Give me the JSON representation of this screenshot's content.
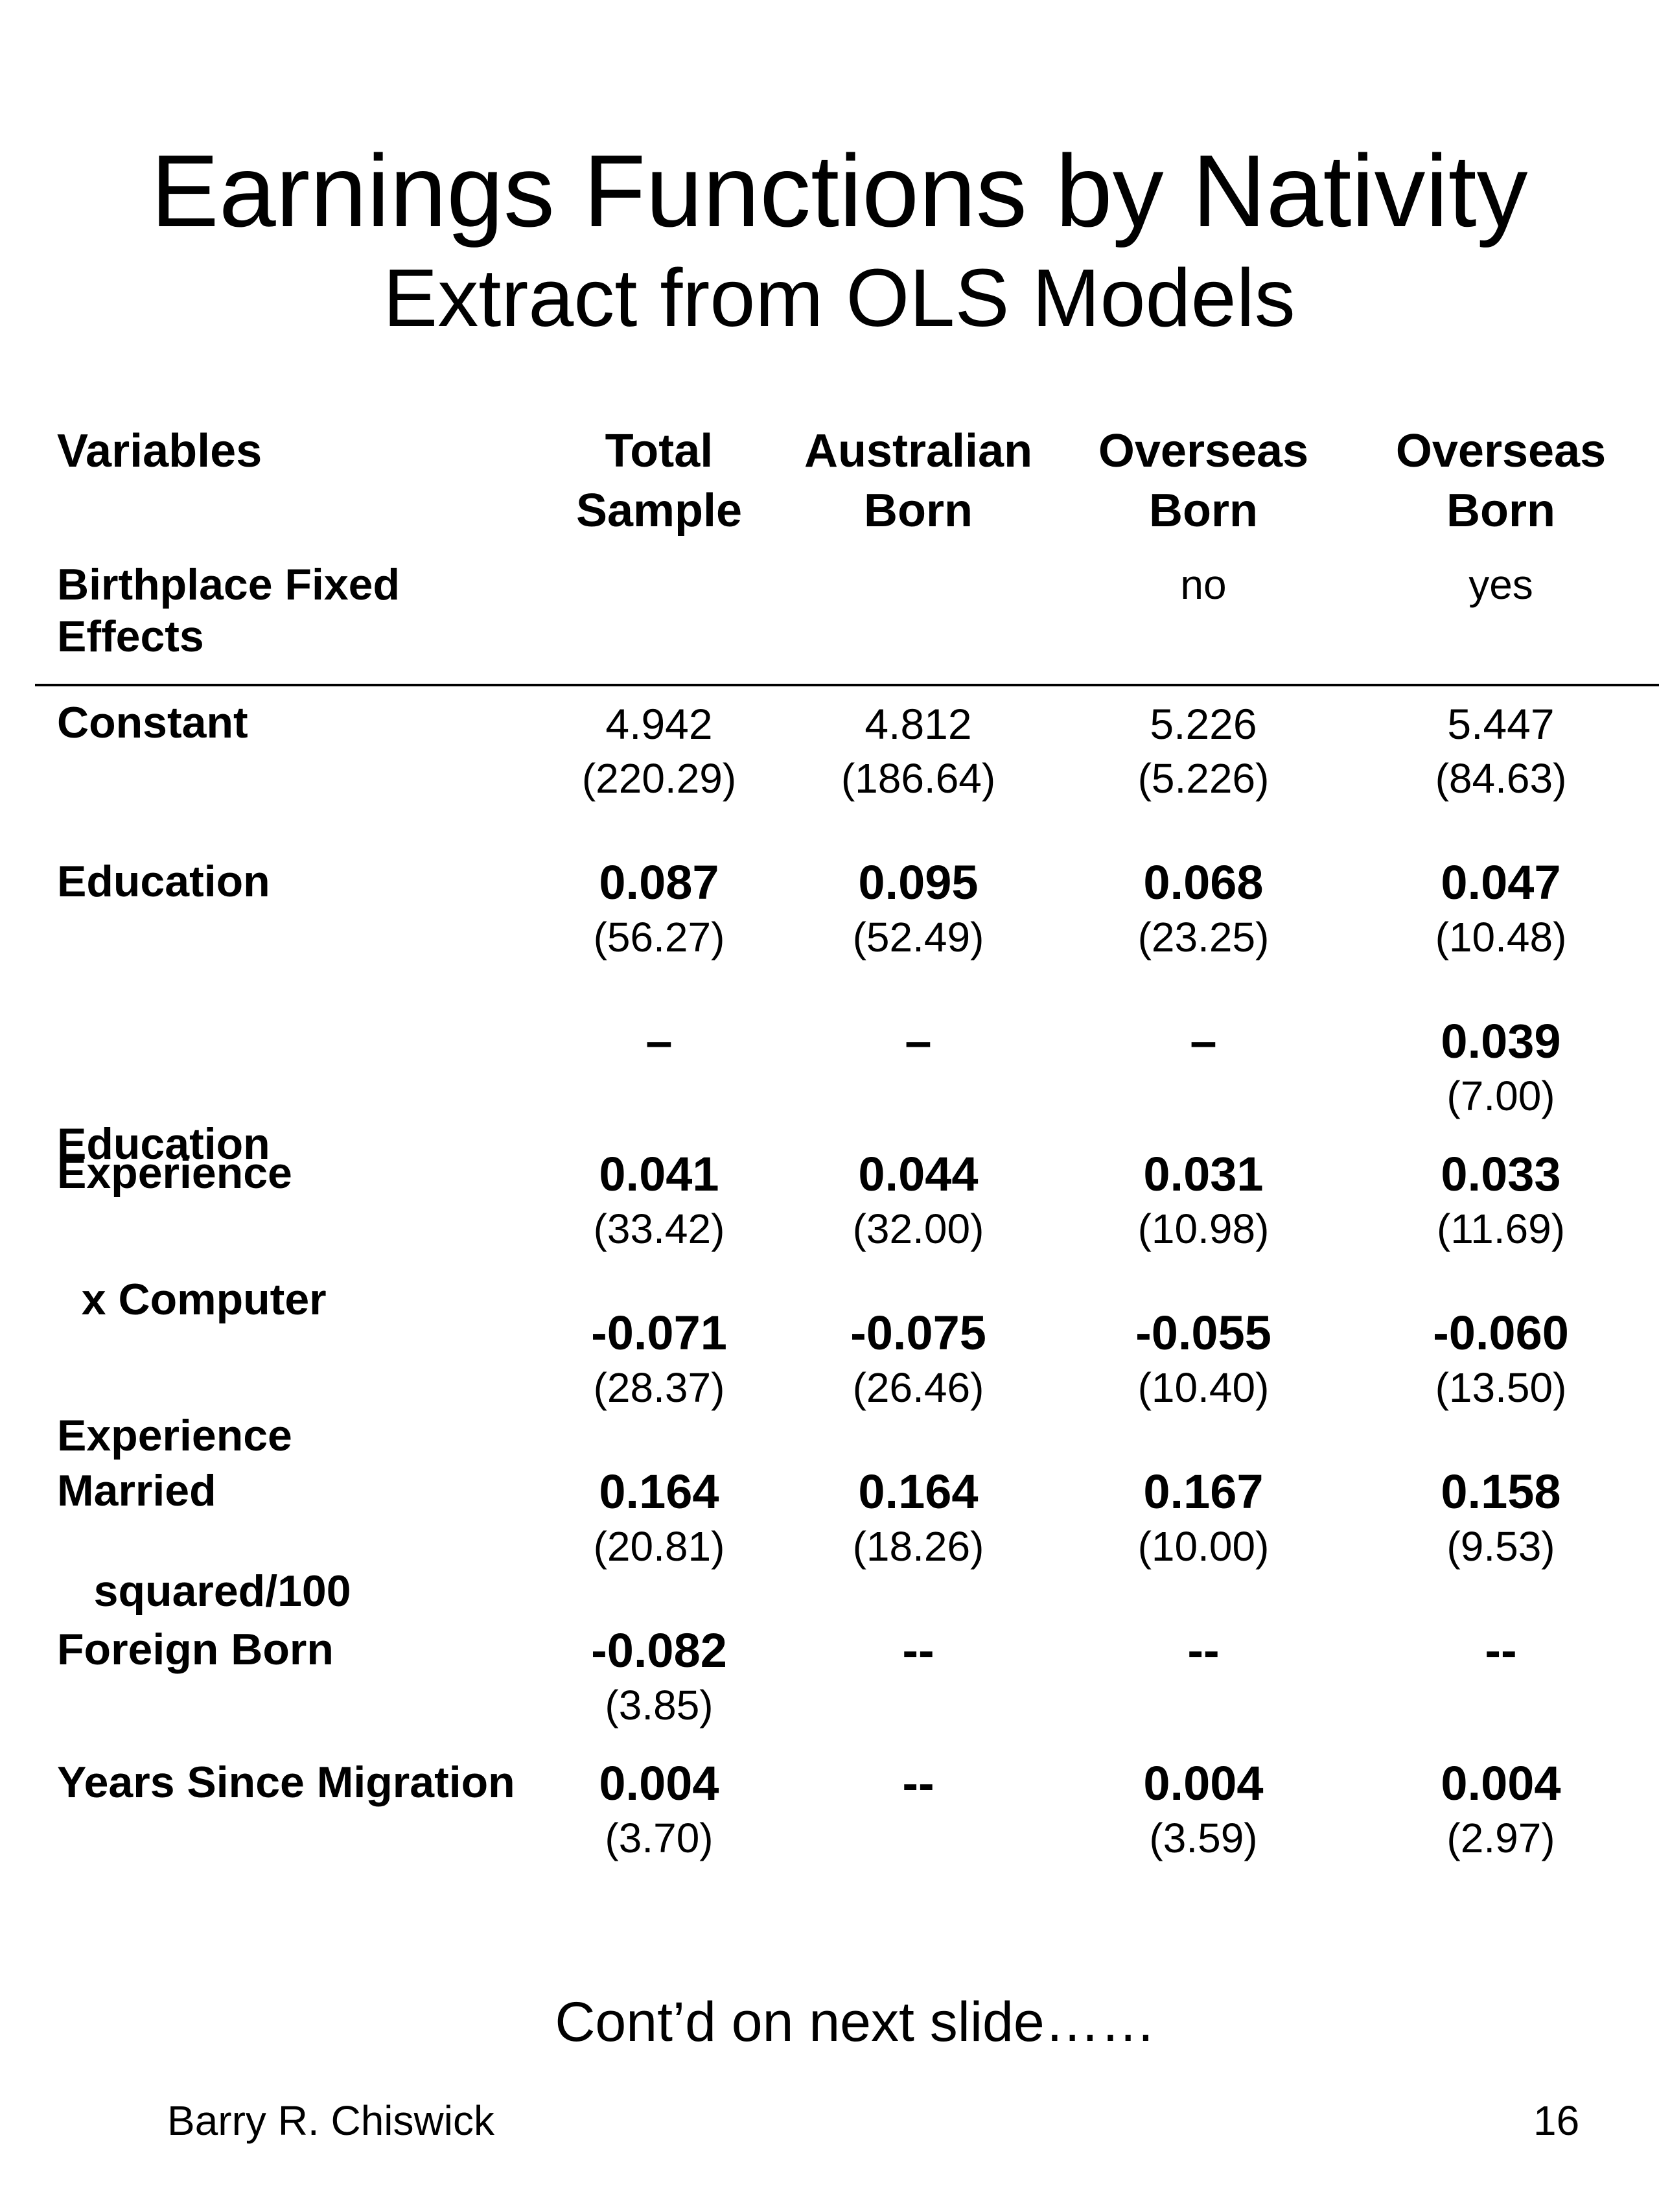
{
  "title": "Earnings Functions by Nativity",
  "subtitle": "Extract from OLS Models",
  "table": {
    "header": {
      "label": "Variables",
      "columns": [
        [
          "Total",
          "Sample"
        ],
        [
          "Australian",
          "Born"
        ],
        [
          "Overseas",
          "Born"
        ],
        [
          "Overseas",
          "Born"
        ]
      ]
    },
    "fixed_effects": {
      "label_lines": [
        "Birthplace Fixed",
        "Effects"
      ],
      "values": [
        "",
        "",
        "no",
        "yes"
      ]
    },
    "rows": [
      {
        "label_lines": [
          "Constant"
        ],
        "cells": [
          {
            "coef": "4.942",
            "se": "(220.29)"
          },
          {
            "coef": "4.812",
            "se": "(186.64)"
          },
          {
            "coef": "5.226",
            "se": "(5.226)"
          },
          {
            "coef": "5.447",
            "se": "(84.63)"
          }
        ]
      },
      {
        "label_lines": [
          "Education"
        ],
        "cells": [
          {
            "coef": "0.087",
            "se": "(56.27)"
          },
          {
            "coef": "0.095",
            "se": "(52.49)"
          },
          {
            "coef": "0.068",
            "se": "(23.25)"
          },
          {
            "coef": "0.047",
            "se": "(10.48)"
          }
        ]
      },
      {
        "label_lines": [
          "Education",
          "  x Computer"
        ],
        "cells": [
          {
            "coef": "–",
            "se": ""
          },
          {
            "coef": "–",
            "se": ""
          },
          {
            "coef": "–",
            "se": ""
          },
          {
            "coef": "0.039",
            "se": "(7.00)"
          }
        ]
      },
      {
        "label_lines": [
          "Experience"
        ],
        "cells": [
          {
            "coef": "0.041",
            "se": "(33.42)"
          },
          {
            "coef": "0.044",
            "se": "(32.00)"
          },
          {
            "coef": "0.031",
            "se": "(10.98)"
          },
          {
            "coef": "0.033",
            "se": "(11.69)"
          }
        ]
      },
      {
        "label_lines": [
          "Experience",
          "   squared/100"
        ],
        "cells": [
          {
            "coef": "-0.071",
            "se": "(28.37)"
          },
          {
            "coef": "-0.075",
            "se": "(26.46)"
          },
          {
            "coef": "-0.055",
            "se": "(10.40)"
          },
          {
            "coef": "-0.060",
            "se": "(13.50)"
          }
        ]
      },
      {
        "label_lines": [
          "Married"
        ],
        "cells": [
          {
            "coef": "0.164",
            "se": "(20.81)"
          },
          {
            "coef": "0.164",
            "se": "(18.26)"
          },
          {
            "coef": "0.167",
            "se": "(10.00)"
          },
          {
            "coef": "0.158",
            "se": "(9.53)"
          }
        ]
      },
      {
        "label_lines": [
          "Foreign Born"
        ],
        "cells": [
          {
            "coef": "-0.082",
            "se": "(3.85)"
          },
          {
            "coef": "--",
            "se": ""
          },
          {
            "coef": "--",
            "se": ""
          },
          {
            "coef": "--",
            "se": ""
          }
        ]
      },
      {
        "label_lines": [
          "Years Since Migration"
        ],
        "cells": [
          {
            "coef": "0.004",
            "se": "(3.70)"
          },
          {
            "coef": "--",
            "se": ""
          },
          {
            "coef": "0.004",
            "se": "(3.59)"
          },
          {
            "coef": "0.004",
            "se": "(2.97)"
          }
        ]
      }
    ]
  },
  "footer": {
    "note": "Cont’d on next slide……",
    "author": "Barry R. Chiswick",
    "page_number": "16"
  }
}
